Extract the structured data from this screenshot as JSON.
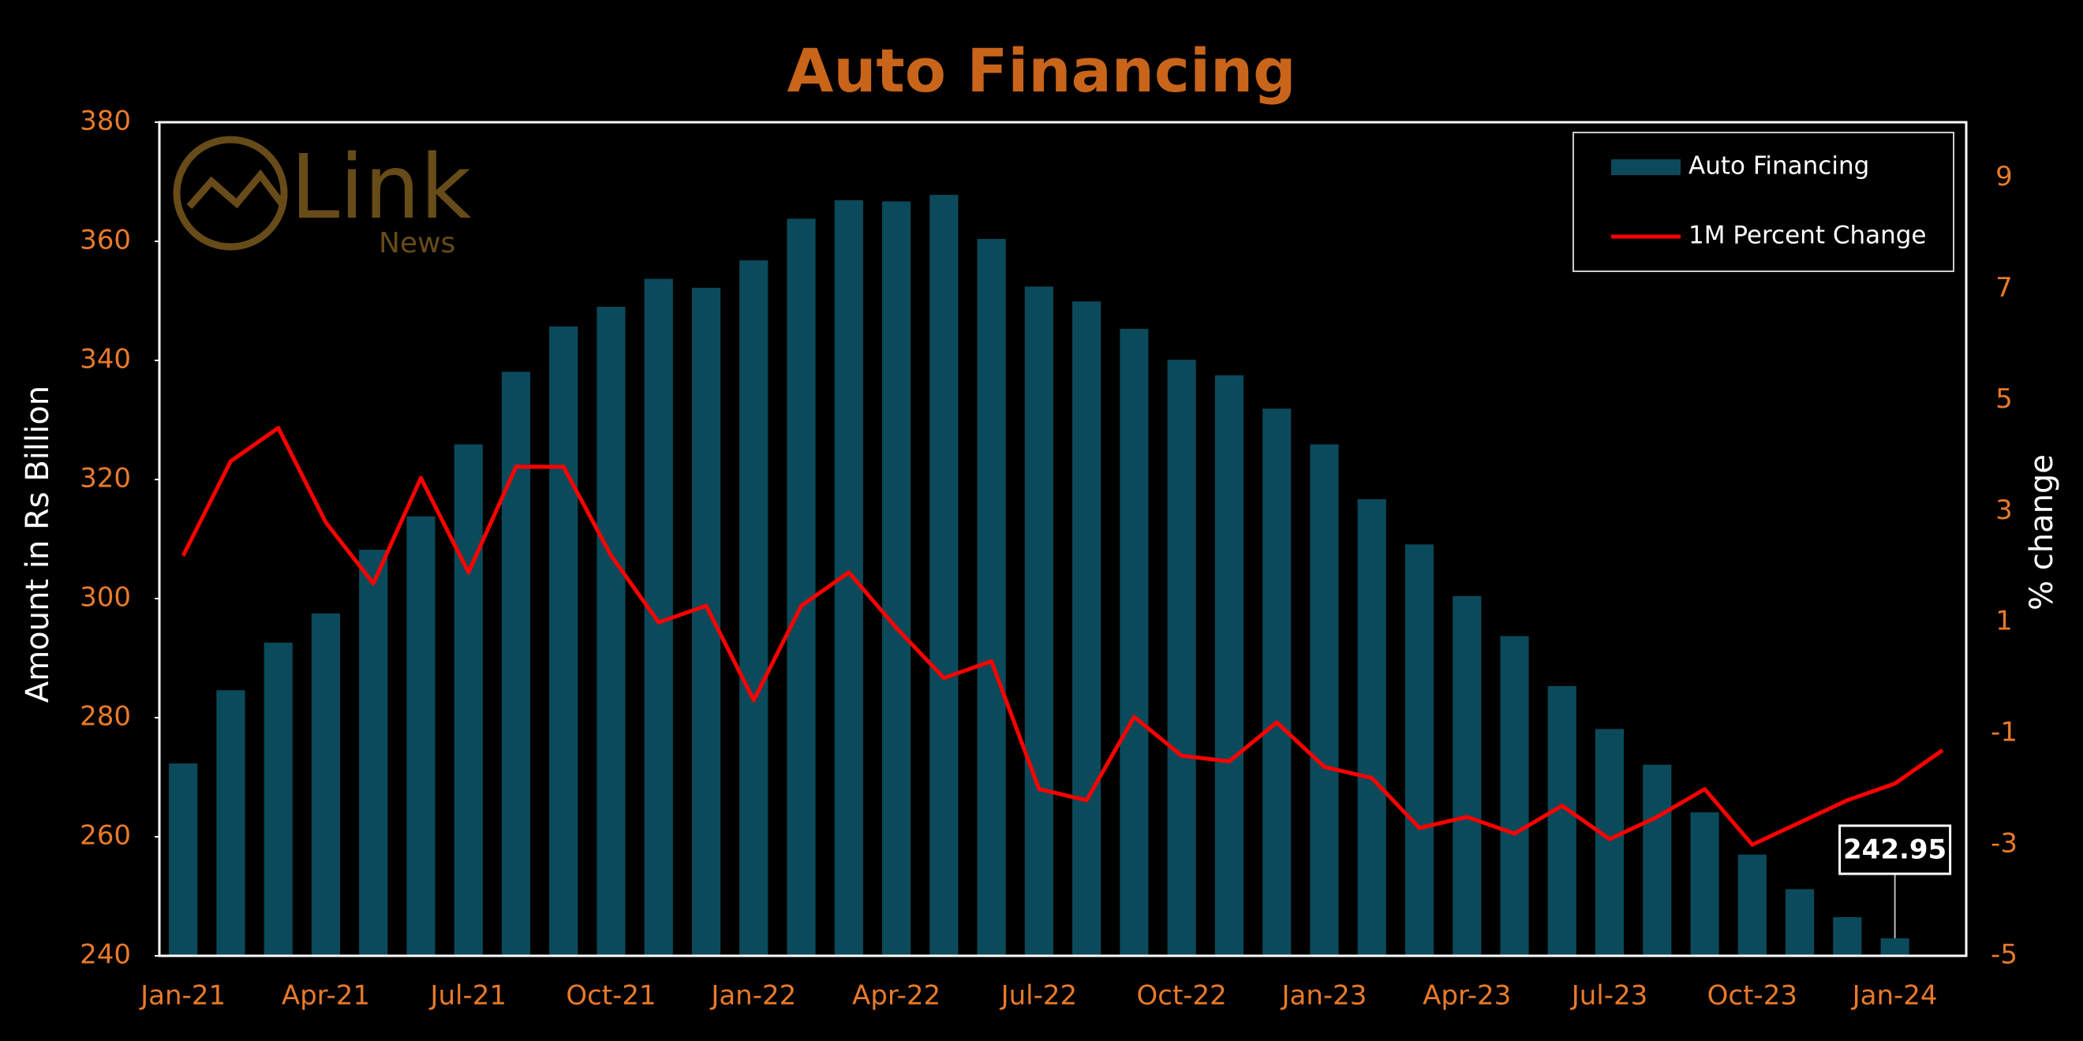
{
  "chart_data": {
    "type": "bar-line",
    "title": "Auto Financing",
    "logo": {
      "text": "Link",
      "subtext": "News"
    },
    "y_label": "Amount in Rs Billion",
    "y2_label": "% change",
    "categories": [
      "Jan-21",
      null,
      null,
      "Apr-21",
      null,
      null,
      "Jul-21",
      null,
      null,
      "Oct-21",
      null,
      null,
      "Jan-22",
      null,
      null,
      "Apr-22",
      null,
      null,
      "Jul-22",
      null,
      null,
      "Oct-22",
      null,
      null,
      "Jan-23",
      null,
      null,
      "Apr-23",
      null,
      null,
      "Jul-23",
      null,
      null,
      "Oct-23",
      null,
      null,
      "Jan-24",
      null
    ],
    "series": [
      {
        "name": "Auto Financing",
        "type": "bar",
        "color": "#0b4a5a",
        "values": [
          272.3,
          284.6,
          292.6,
          297.5,
          308.2,
          313.8,
          325.9,
          338.1,
          345.7,
          349.0,
          353.7,
          352.2,
          356.8,
          363.8,
          366.9,
          366.7,
          367.8,
          360.4,
          352.4,
          349.9,
          345.3,
          340.1,
          337.5,
          331.9,
          325.9,
          316.7,
          309.1,
          300.4,
          293.7,
          285.3,
          278.1,
          272.1,
          264.1,
          257.0,
          251.2,
          246.5,
          242.95,
          null
        ]
      },
      {
        "name": "1M Percent Change",
        "type": "line",
        "axis": "y2",
        "color": "#ff0000",
        "values": [
          2.2,
          3.9,
          4.5,
          2.8,
          1.7,
          3.6,
          1.9,
          3.8,
          3.8,
          2.2,
          1.0,
          1.3,
          -0.4,
          1.3,
          1.9,
          0.9,
          0.0,
          0.3,
          -2.0,
          -2.2,
          -0.7,
          -1.4,
          -1.5,
          -0.8,
          -1.6,
          -1.8,
          -2.7,
          -2.5,
          -2.8,
          -2.3,
          -2.9,
          -2.5,
          -2.0,
          -3.0,
          -2.6,
          -2.2,
          -1.9,
          -1.3
        ]
      }
    ],
    "ylim": [
      240,
      380
    ],
    "yticks": [
      240,
      260,
      280,
      300,
      320,
      340,
      360,
      380
    ],
    "y2lim": [
      -5,
      10
    ],
    "y2ticks": [
      -5,
      -3,
      -1,
      1,
      3,
      5,
      7,
      9
    ],
    "legend": "top-right"
  }
}
